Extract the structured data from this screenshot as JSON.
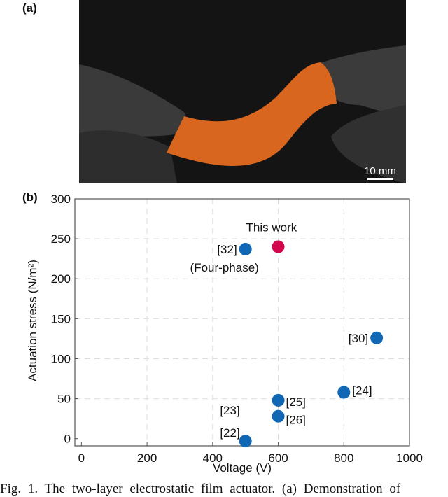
{
  "panel_a": {
    "label": "(a)",
    "scale_bar": "10 mm",
    "film_color": "#d9661e"
  },
  "panel_b": {
    "label": "(b)"
  },
  "chart_data": {
    "type": "scatter",
    "xlabel": "Voltage (V)",
    "ylabel": "Actuation stress (N/m²)",
    "xlim": [
      -20,
      1000
    ],
    "ylim": [
      -9,
      300
    ],
    "xticks": [
      0,
      200,
      400,
      600,
      800,
      1000
    ],
    "yticks": [
      0,
      50,
      100,
      150,
      200,
      250,
      300
    ],
    "grid": "dashed",
    "points": [
      {
        "label": "This work",
        "x": 600,
        "y": 240,
        "color": "#d4084f"
      },
      {
        "label": "[32]",
        "sublabel": "(Four-phase)",
        "x": 500,
        "y": 237,
        "color": "#1067b4"
      },
      {
        "label": "[30]",
        "x": 900,
        "y": 126,
        "color": "#1067b4"
      },
      {
        "label": "[24]",
        "x": 800,
        "y": 58,
        "color": "#1067b4"
      },
      {
        "label": "[25]",
        "x": 600,
        "y": 48,
        "color": "#1067b4"
      },
      {
        "label": "[26]",
        "x": 600,
        "y": 28,
        "color": "#1067b4"
      },
      {
        "label": "[23]",
        "x": 500,
        "y": -3,
        "color": "#1067b4"
      },
      {
        "label": "[22]",
        "x": 500,
        "y": -3,
        "color": "#1067b4"
      }
    ]
  },
  "caption": "Fig. 1.  The two-layer electrostatic film actuator. (a) Demonstration of"
}
